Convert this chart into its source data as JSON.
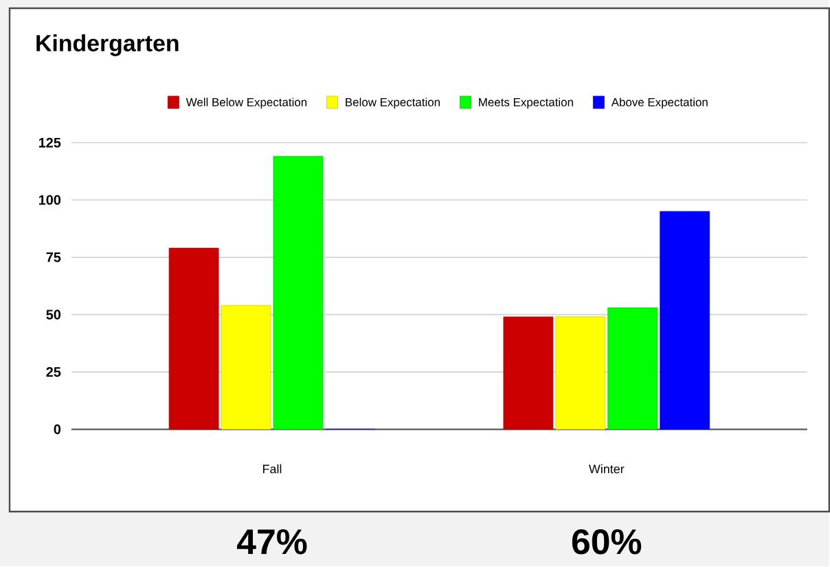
{
  "chart_data": {
    "type": "bar",
    "title": "Kindergarten",
    "categories": [
      "Fall",
      "Winter"
    ],
    "series": [
      {
        "name": "Well Below Expectation",
        "color": "#cc0000",
        "values": [
          79,
          49
        ]
      },
      {
        "name": "Below Expectation",
        "color": "#ffff00",
        "values": [
          54,
          49
        ]
      },
      {
        "name": "Meets Expectation",
        "color": "#00ff00",
        "values": [
          119,
          53
        ]
      },
      {
        "name": "Above Expectation",
        "color": "#0000ff",
        "values": [
          0,
          95
        ]
      }
    ],
    "ylim": [
      0,
      125
    ],
    "yticks": [
      0,
      25,
      50,
      75,
      100,
      125
    ],
    "grid": "y",
    "legend": "top",
    "annotations": [
      "47%",
      "60%"
    ]
  }
}
